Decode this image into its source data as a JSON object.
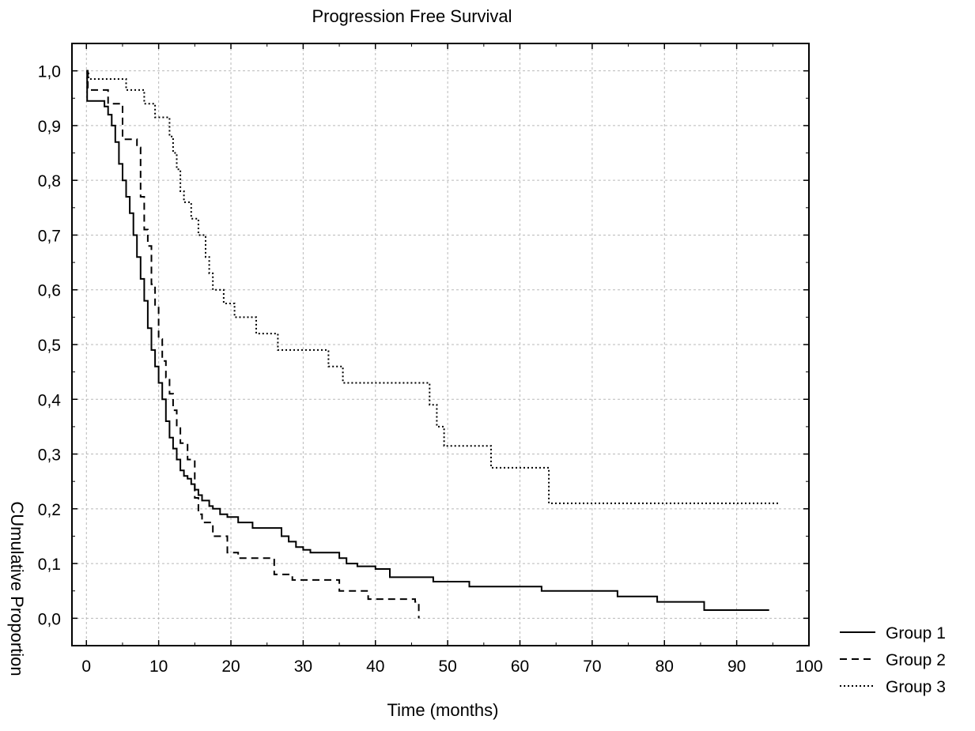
{
  "chart_data": {
    "type": "line",
    "step": true,
    "title": "Progression Free Survival",
    "xlabel": "Time (months)",
    "ylabel": "CUmulative Proportion",
    "xlim": [
      -2,
      100
    ],
    "ylim": [
      -0.05,
      1.05
    ],
    "xticks": [
      0,
      10,
      20,
      30,
      40,
      50,
      60,
      70,
      80,
      90,
      100
    ],
    "yticks": [
      0.0,
      0.1,
      0.2,
      0.3,
      0.4,
      0.5,
      0.6,
      0.7,
      0.8,
      0.9,
      1.0
    ],
    "xtick_labels": [
      "0",
      "10",
      "20",
      "30",
      "40",
      "50",
      "60",
      "70",
      "80",
      "90",
      "100"
    ],
    "ytick_labels": [
      "0,0",
      "0,1",
      "0,2",
      "0,3",
      "0,4",
      "0,5",
      "0,6",
      "0,7",
      "0,8",
      "0,9",
      "1,0"
    ],
    "grid": true,
    "legend_position": "bottom-right, outside plot",
    "series": [
      {
        "name": "Group 1",
        "style": "solid",
        "x": [
          0,
          0.1,
          2.5,
          3.0,
          3.5,
          4.0,
          4.5,
          5.0,
          5.5,
          6.0,
          6.5,
          7.0,
          7.5,
          8.0,
          8.5,
          9.0,
          9.5,
          10.0,
          10.5,
          11.0,
          11.5,
          12.0,
          12.5,
          13.0,
          13.5,
          14.0,
          14.5,
          15.0,
          15.5,
          16.0,
          17.0,
          17.5,
          18.5,
          19.5,
          21.0,
          23.0,
          27.0,
          28.0,
          29.0,
          30.0,
          31.0,
          35.0,
          36.0,
          37.5,
          40.0,
          42.0,
          48.0,
          53.0,
          63.0,
          73.5,
          79.0,
          85.5,
          94.5
        ],
        "y": [
          1.0,
          0.945,
          0.935,
          0.92,
          0.9,
          0.87,
          0.83,
          0.8,
          0.77,
          0.74,
          0.7,
          0.66,
          0.62,
          0.58,
          0.53,
          0.49,
          0.46,
          0.43,
          0.4,
          0.36,
          0.33,
          0.31,
          0.29,
          0.27,
          0.26,
          0.255,
          0.245,
          0.235,
          0.225,
          0.215,
          0.205,
          0.2,
          0.19,
          0.185,
          0.175,
          0.165,
          0.15,
          0.14,
          0.13,
          0.125,
          0.12,
          0.11,
          0.1,
          0.095,
          0.09,
          0.075,
          0.067,
          0.058,
          0.05,
          0.04,
          0.03,
          0.015,
          0.015
        ]
      },
      {
        "name": "Group 2",
        "style": "dashed",
        "x": [
          0,
          0.2,
          3.0,
          5.0,
          7.0,
          7.5,
          8.0,
          8.5,
          9.0,
          9.5,
          10.0,
          10.5,
          11.0,
          11.5,
          12.0,
          12.5,
          13.0,
          14.0,
          15.0,
          15.5,
          16.0,
          17.5,
          19.5,
          21.0,
          26.0,
          28.5,
          35.0,
          39.0,
          45.5,
          46.0
        ],
        "y": [
          1.0,
          0.965,
          0.94,
          0.875,
          0.86,
          0.77,
          0.71,
          0.68,
          0.61,
          0.57,
          0.51,
          0.47,
          0.44,
          0.41,
          0.38,
          0.35,
          0.32,
          0.29,
          0.22,
          0.19,
          0.175,
          0.15,
          0.12,
          0.11,
          0.08,
          0.07,
          0.05,
          0.035,
          0.03,
          0.0
        ]
      },
      {
        "name": "Group 3",
        "style": "dotted",
        "x": [
          0,
          0.3,
          5.5,
          8.0,
          9.5,
          11.5,
          12.0,
          12.5,
          13.0,
          13.5,
          14.5,
          15.5,
          16.5,
          17.0,
          17.5,
          19.0,
          20.5,
          23.5,
          26.5,
          33.5,
          35.5,
          47.5,
          48.5,
          49.5,
          56.0,
          64.0,
          96.0
        ],
        "y": [
          1.0,
          0.985,
          0.965,
          0.94,
          0.915,
          0.88,
          0.85,
          0.82,
          0.78,
          0.76,
          0.73,
          0.7,
          0.66,
          0.63,
          0.6,
          0.575,
          0.55,
          0.52,
          0.49,
          0.46,
          0.43,
          0.39,
          0.35,
          0.315,
          0.275,
          0.21,
          0.21
        ]
      }
    ]
  }
}
